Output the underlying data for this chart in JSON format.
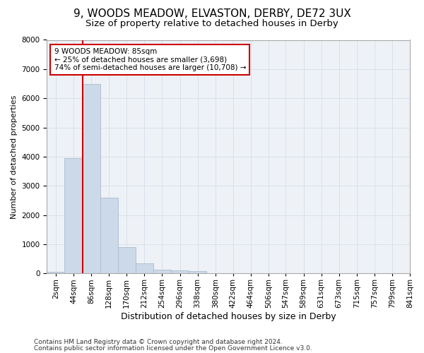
{
  "title1": "9, WOODS MEADOW, ELVASTON, DERBY, DE72 3UX",
  "title2": "Size of property relative to detached houses in Derby",
  "xlabel": "Distribution of detached houses by size in Derby",
  "ylabel": "Number of detached properties",
  "bar_color": "#ccd9e8",
  "bar_edge_color": "#aabcce",
  "grid_color": "#d4dde8",
  "background_color": "#eef2f7",
  "annotation_text_line1": "9 WOODS MEADOW: 85sqm",
  "annotation_text_line2": "← 25% of detached houses are smaller (3,698)",
  "annotation_text_line3": "74% of semi-detached houses are larger (10,708) →",
  "red_line_x": 86,
  "categories": [
    "2sqm",
    "44sqm",
    "86sqm",
    "128sqm",
    "170sqm",
    "212sqm",
    "254sqm",
    "296sqm",
    "338sqm",
    "380sqm",
    "422sqm",
    "464sqm",
    "506sqm",
    "547sqm",
    "589sqm",
    "631sqm",
    "673sqm",
    "715sqm",
    "757sqm",
    "799sqm",
    "841sqm"
  ],
  "bin_edges": [
    2,
    44,
    86,
    128,
    170,
    212,
    254,
    296,
    338,
    380,
    422,
    464,
    506,
    547,
    589,
    631,
    673,
    715,
    757,
    799,
    841
  ],
  "values": [
    50,
    3950,
    6500,
    2600,
    900,
    350,
    130,
    100,
    70,
    10,
    5,
    0,
    0,
    0,
    0,
    0,
    0,
    0,
    0,
    0,
    0
  ],
  "ylim": [
    0,
    8000
  ],
  "yticks": [
    0,
    1000,
    2000,
    3000,
    4000,
    5000,
    6000,
    7000,
    8000
  ],
  "footer1": "Contains HM Land Registry data © Crown copyright and database right 2024.",
  "footer2": "Contains public sector information licensed under the Open Government Licence v3.0.",
  "title1_fontsize": 11,
  "title2_fontsize": 9.5,
  "xlabel_fontsize": 9,
  "ylabel_fontsize": 8,
  "tick_fontsize": 7.5,
  "annotation_fontsize": 7.5,
  "footer_fontsize": 6.5
}
